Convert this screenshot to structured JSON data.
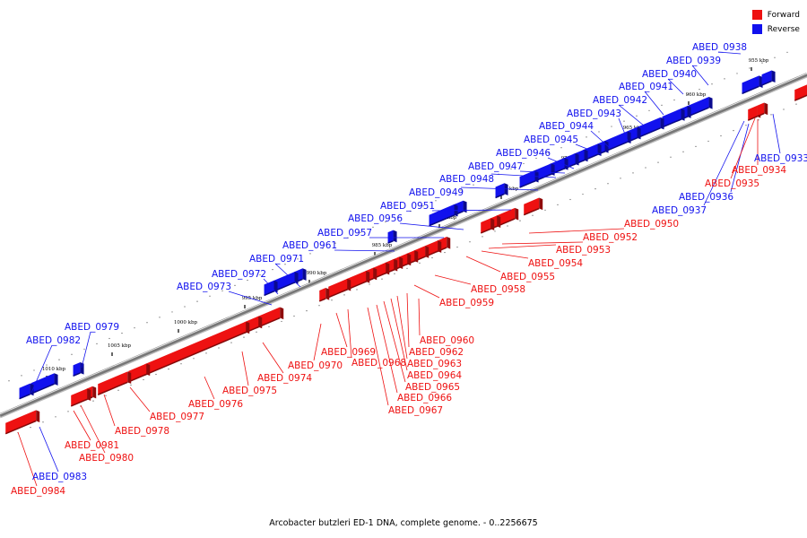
{
  "colors": {
    "forward": "#ee1111",
    "reverse": "#1111ee",
    "backbone": "#777777"
  },
  "legend": {
    "forward": "Forward",
    "reverse": "Reverse"
  },
  "caption": "Arcobacter butzleri ED-1 DNA, complete genome. - 0..2256675",
  "scale_ticks": [
    "955 kbp",
    "960 kbp",
    "965 kbp",
    "970 kbp",
    "975 kbp",
    "980 kbp",
    "985 kbp",
    "990 kbp",
    "995 kbp",
    "1000 kbp",
    "1005 kbp",
    "1010 kbp"
  ],
  "forward_genes": [
    "ABED_0934",
    "ABED_0935",
    "ABED_0950",
    "ABED_0952",
    "ABED_0953",
    "ABED_0954",
    "ABED_0955",
    "ABED_0958",
    "ABED_0959",
    "ABED_0960",
    "ABED_0962",
    "ABED_0963",
    "ABED_0964",
    "ABED_0965",
    "ABED_0966",
    "ABED_0967",
    "ABED_0968",
    "ABED_0969",
    "ABED_0970",
    "ABED_0974",
    "ABED_0975",
    "ABED_0976",
    "ABED_0977",
    "ABED_0978",
    "ABED_0980",
    "ABED_0981",
    "ABED_0984"
  ],
  "reverse_genes": [
    "ABED_0933",
    "ABED_0936",
    "ABED_0937",
    "ABED_0938",
    "ABED_0939",
    "ABED_0940",
    "ABED_0941",
    "ABED_0942",
    "ABED_0943",
    "ABED_0944",
    "ABED_0945",
    "ABED_0946",
    "ABED_0947",
    "ABED_0948",
    "ABED_0949",
    "ABED_0951",
    "ABED_0956",
    "ABED_0957",
    "ABED_0961",
    "ABED_0971",
    "ABED_0972",
    "ABED_0973",
    "ABED_0979",
    "ABED_0982",
    "ABED_0983"
  ]
}
